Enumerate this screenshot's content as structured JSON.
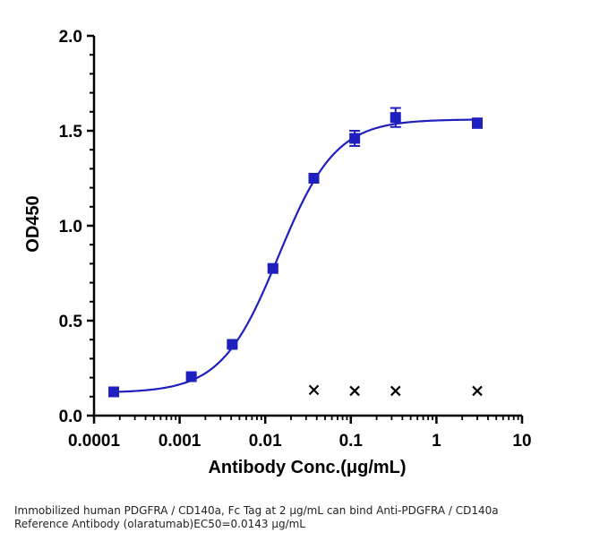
{
  "chart_data": {
    "type": "scatter",
    "xlabel": "Antibody Conc.(μg/mL)",
    "ylabel": "OD450",
    "x_scale": "log",
    "xlim": [
      0.0001,
      10
    ],
    "ylim": [
      0,
      2.0
    ],
    "x_ticks": [
      "0.0001",
      "0.001",
      "0.01",
      "0.1",
      "1",
      "10"
    ],
    "y_ticks": [
      "0.0",
      "0.5",
      "1.0",
      "1.5",
      "2.0"
    ],
    "grid": false,
    "series": [
      {
        "marker": "square",
        "color": "#1f1fbf",
        "x": [
          0.00017,
          0.00137,
          0.00412,
          0.0123,
          0.037,
          0.111,
          0.333,
          3.0
        ],
        "y": [
          0.125,
          0.205,
          0.375,
          0.775,
          1.25,
          1.46,
          1.57,
          1.54
        ],
        "error": [
          0.0,
          0.01,
          0.01,
          0.015,
          0.015,
          0.04,
          0.05,
          0.025
        ]
      },
      {
        "marker": "x",
        "color": "#000000",
        "x": [
          0.037,
          0.111,
          0.333,
          3.0
        ],
        "y": [
          0.135,
          0.13,
          0.13,
          0.13
        ]
      }
    ],
    "fit": {
      "model": "4PL",
      "bottom": 0.12,
      "top": 1.56,
      "ec50": 0.0143,
      "hill": 1.3,
      "color": "#1f1fbf"
    }
  },
  "caption": {
    "line1": "Immobilized human PDGFRA / CD140a, Fc Tag at 2  μg/mL can bind  Anti-PDGFRA / CD140a",
    "line2": "Reference Antibody (olaratumab)\u001aEC50=0.0143 μg/mL"
  }
}
